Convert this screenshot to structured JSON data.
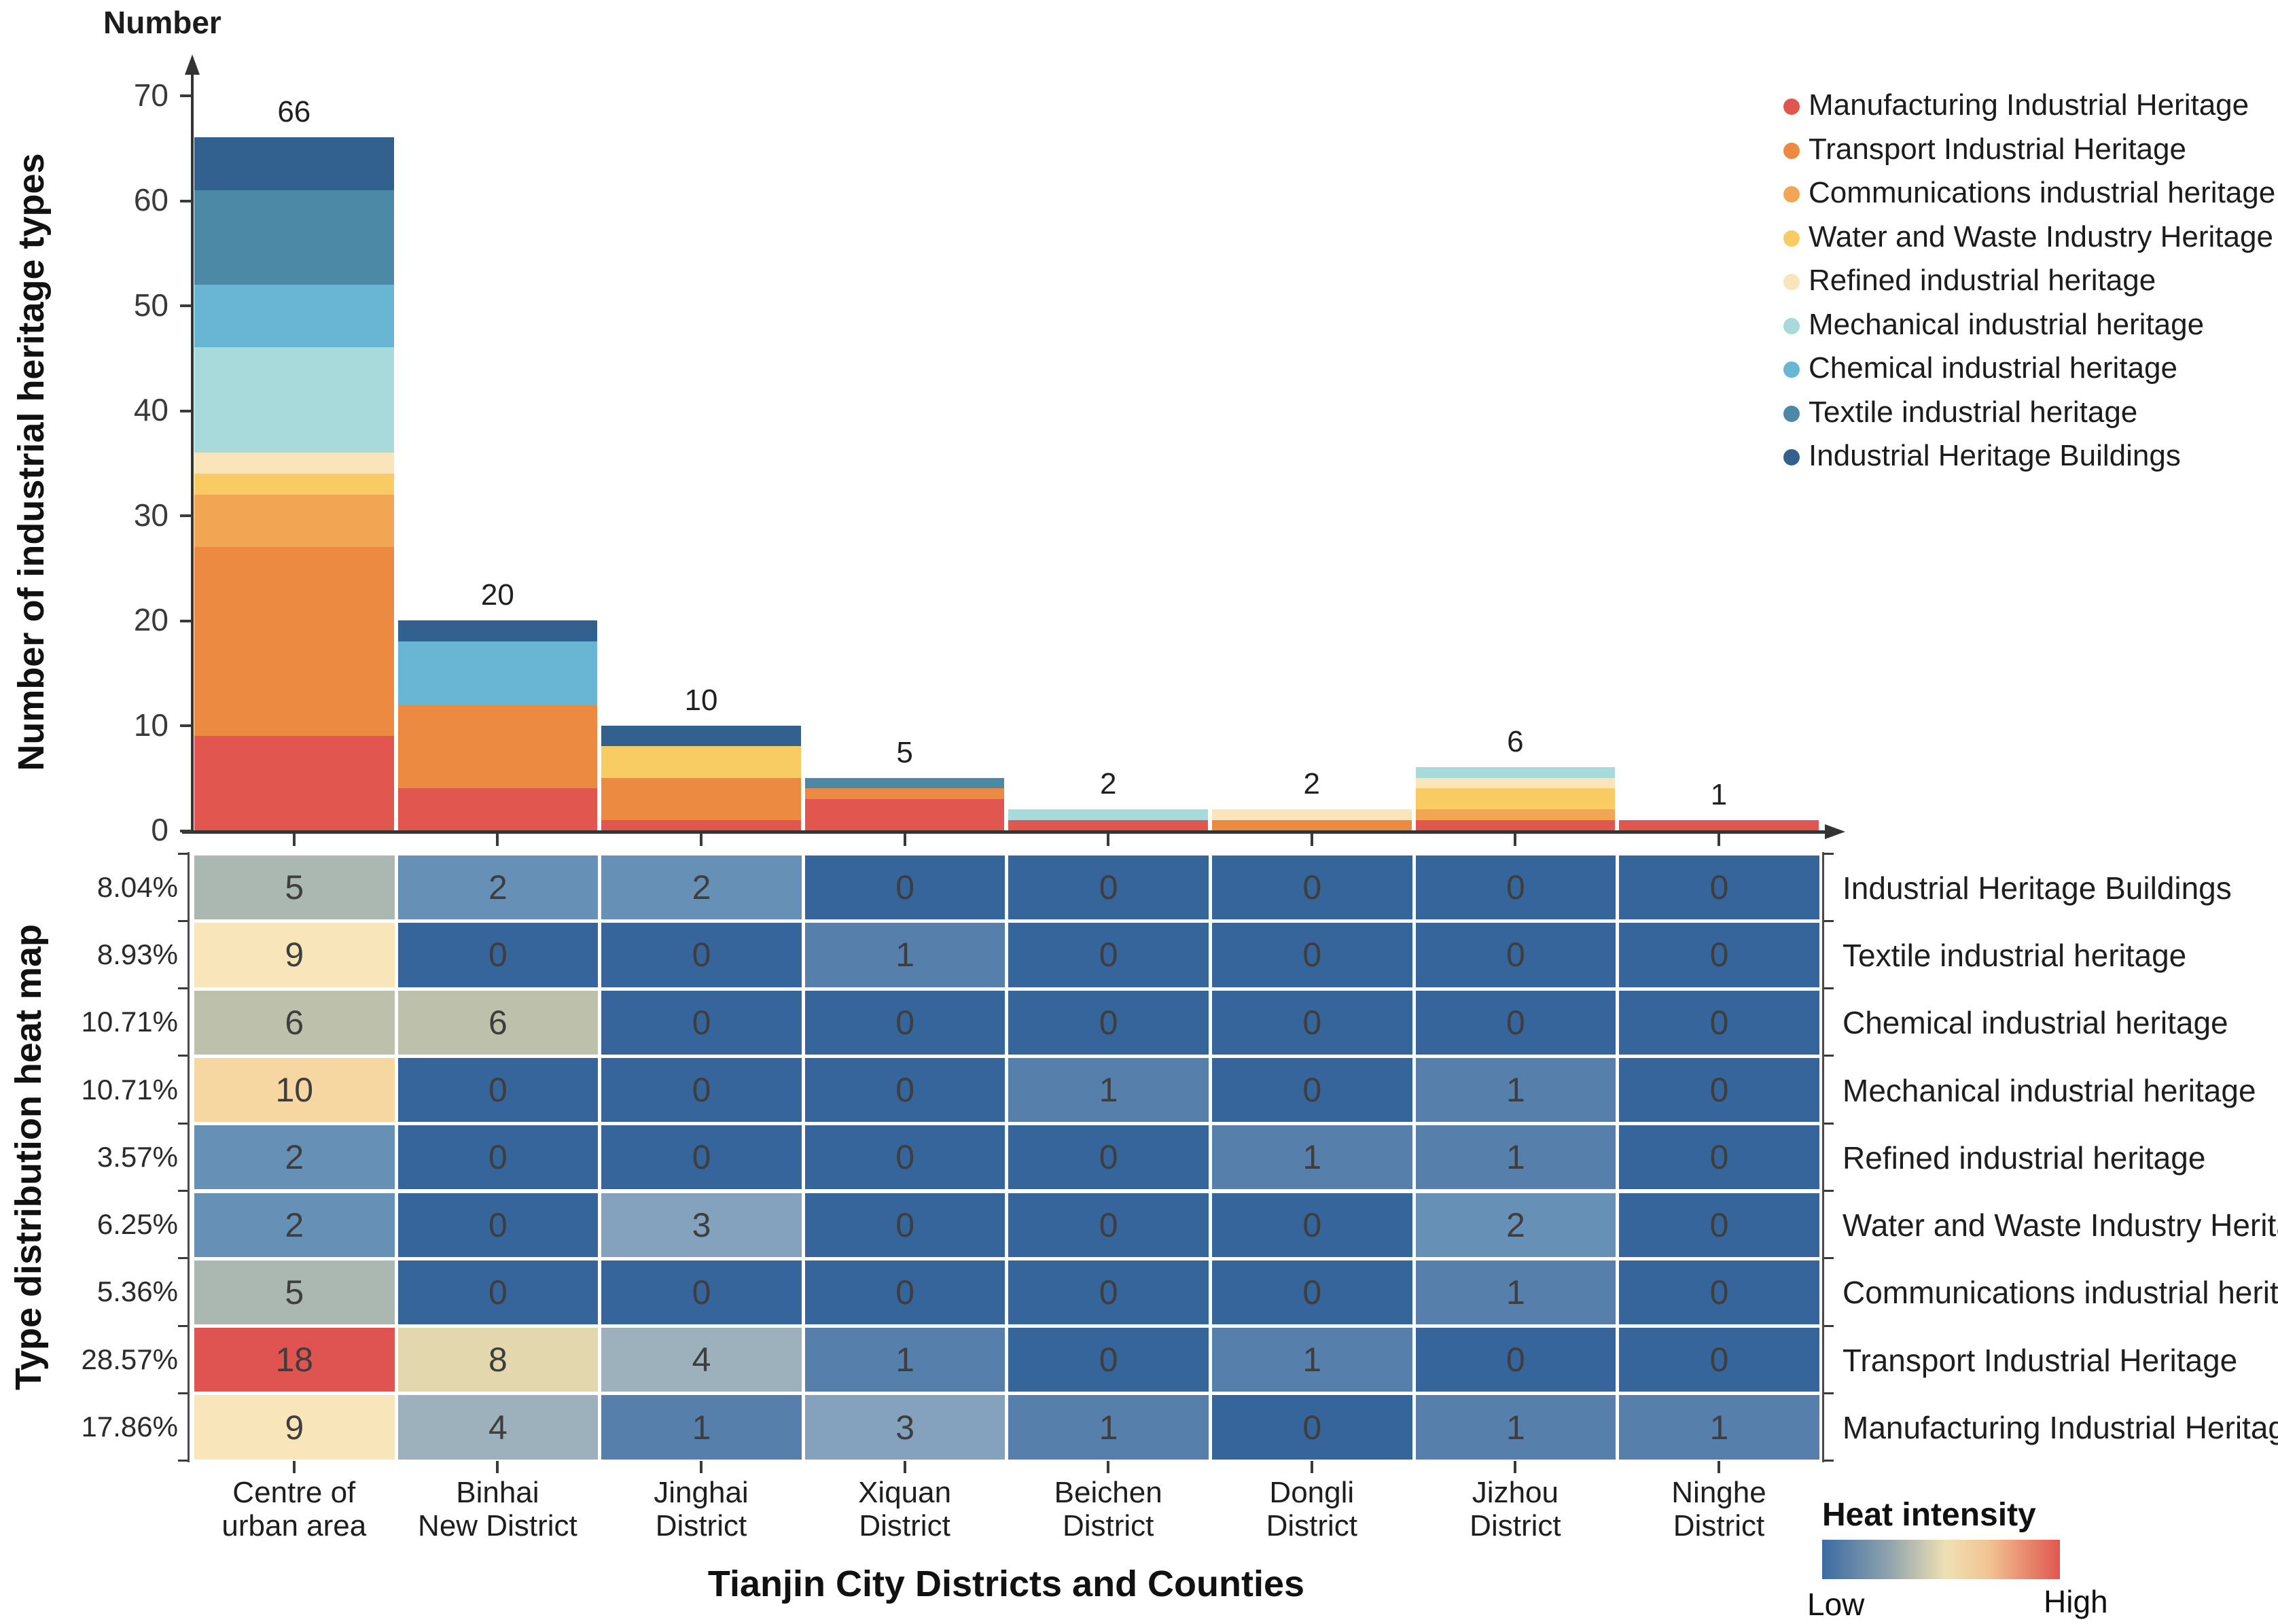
{
  "chart_data": [
    {
      "type": "bar",
      "stacked": true,
      "axis_unit_label": "Number",
      "ylabel": "Number of industrial heritage types",
      "ylim": [
        0,
        70
      ],
      "yticks": [
        0,
        10,
        20,
        30,
        40,
        50,
        60,
        70
      ],
      "grid": false,
      "legend_position": "top-right",
      "categories": [
        "Centre of urban area",
        "Binhai New District",
        "Jinghai District",
        "Xiquan District",
        "Beichen District",
        "Dongli District",
        "Jizhou District",
        "Ninghe District"
      ],
      "totals": [
        66,
        20,
        10,
        5,
        2,
        2,
        6,
        1
      ],
      "series": [
        {
          "name": "Manufacturing Industrial Heritage",
          "color": "#E1564F",
          "values": [
            9,
            4,
            1,
            3,
            1,
            0,
            1,
            1
          ]
        },
        {
          "name": "Transport Industrial Heritage",
          "color": "#EB8A40",
          "values": [
            18,
            8,
            4,
            1,
            0,
            1,
            0,
            0
          ]
        },
        {
          "name": "Communications industrial heritage",
          "color": "#F2A654",
          "values": [
            5,
            0,
            0,
            0,
            0,
            0,
            1,
            0
          ]
        },
        {
          "name": "Water and Waste Industry Heritage",
          "color": "#F9CB63",
          "values": [
            2,
            0,
            3,
            0,
            0,
            0,
            2,
            0
          ]
        },
        {
          "name": "Refined industrial heritage",
          "color": "#FAE5BB",
          "values": [
            2,
            0,
            0,
            0,
            0,
            1,
            1,
            0
          ]
        },
        {
          "name": "Mechanical industrial heritage",
          "color": "#A8D9DB",
          "values": [
            10,
            0,
            0,
            0,
            1,
            0,
            1,
            0
          ]
        },
        {
          "name": "Chemical industrial heritage",
          "color": "#69B6D4",
          "values": [
            6,
            6,
            0,
            0,
            0,
            0,
            0,
            0
          ]
        },
        {
          "name": "Textile industrial heritage",
          "color": "#4C89A6",
          "values": [
            9,
            0,
            0,
            1,
            0,
            0,
            0,
            0
          ]
        },
        {
          "name": "Industrial Heritage Buildings",
          "color": "#33618F",
          "values": [
            5,
            2,
            2,
            0,
            0,
            0,
            0,
            0
          ]
        }
      ]
    },
    {
      "type": "heatmap",
      "ylabel": "Type distribution heat map",
      "xlabel": "Tianjin City Districts and Counties",
      "columns": [
        [
          "Centre of",
          "urban area"
        ],
        [
          "Binhai",
          "New District"
        ],
        [
          "Jinghai",
          "District"
        ],
        [
          "Xiquan",
          "District"
        ],
        [
          "Beichen",
          "District"
        ],
        [
          "Dongli",
          "District"
        ],
        [
          "Jizhou",
          "District"
        ],
        [
          "Ninghe",
          "District"
        ]
      ],
      "rows": [
        {
          "label": "Industrial Heritage Buildings",
          "percent": "8.04%",
          "values": [
            5,
            2,
            2,
            0,
            0,
            0,
            0,
            0
          ]
        },
        {
          "label": "Textile industrial heritage",
          "percent": "8.93%",
          "values": [
            9,
            0,
            0,
            1,
            0,
            0,
            0,
            0
          ]
        },
        {
          "label": "Chemical industrial heritage",
          "percent": "10.71%",
          "values": [
            6,
            6,
            0,
            0,
            0,
            0,
            0,
            0
          ]
        },
        {
          "label": "Mechanical industrial heritage",
          "percent": "10.71%",
          "values": [
            10,
            0,
            0,
            0,
            1,
            0,
            1,
            0
          ]
        },
        {
          "label": "Refined industrial heritage",
          "percent": "3.57%",
          "values": [
            2,
            0,
            0,
            0,
            0,
            1,
            1,
            0
          ]
        },
        {
          "label": "Water and Waste Industry Heritage",
          "percent": "6.25%",
          "values": [
            2,
            0,
            3,
            0,
            0,
            0,
            2,
            0
          ]
        },
        {
          "label": "Communications industrial heritage",
          "percent": "5.36%",
          "values": [
            5,
            0,
            0,
            0,
            0,
            0,
            1,
            0
          ]
        },
        {
          "label": "Transport Industrial Heritage",
          "percent": "28.57%",
          "values": [
            18,
            8,
            4,
            1,
            0,
            1,
            0,
            0
          ]
        },
        {
          "label": "Manufacturing Industrial Heritage",
          "percent": "17.86%",
          "values": [
            9,
            4,
            1,
            3,
            1,
            0,
            1,
            1
          ]
        }
      ],
      "value_colors": {
        "0": "#35659B",
        "1": "#577FAB",
        "2": "#6690B5",
        "3": "#84A2BE",
        "4": "#9DB1BD",
        "5": "#ABB8B2",
        "6": "#BDC0AB",
        "8": "#E3D7AD",
        "9": "#F8E5BA",
        "10": "#F6D7A2",
        "18": "#DF5450"
      },
      "heat_gradient": [
        "#3B6BA3",
        "#8FA3AD",
        "#EFE0B2",
        "#F2C492",
        "#E0564F"
      ],
      "legend": {
        "title": "Heat intensity",
        "low": "Low",
        "high": "High"
      }
    }
  ]
}
